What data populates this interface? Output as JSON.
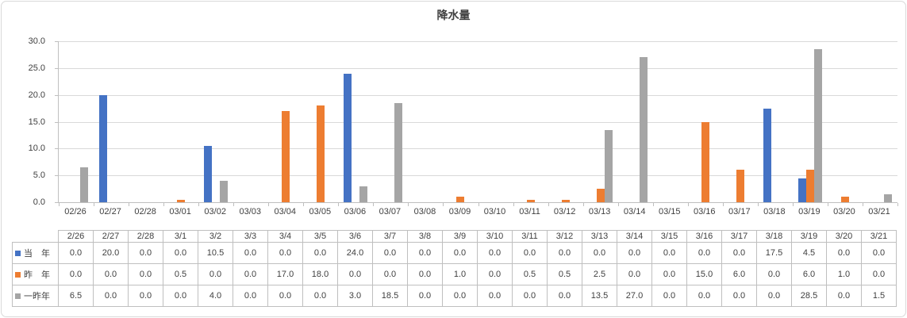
{
  "title": "降水量",
  "colors": {
    "series_blue": "#4472C4",
    "series_orange": "#ED7D31",
    "series_gray": "#A5A5A5",
    "gridline": "#D9D9D9",
    "axis": "#BFBFBF",
    "text": "#404040",
    "chart_border": "#D9D9D9",
    "table_border": "#BFBFBF"
  },
  "chart_data": {
    "type": "bar",
    "title": "降水量",
    "categories": [
      "02/26",
      "02/27",
      "02/28",
      "03/01",
      "03/02",
      "03/03",
      "03/04",
      "03/05",
      "03/06",
      "03/07",
      "03/08",
      "03/09",
      "03/10",
      "03/11",
      "03/12",
      "03/13",
      "03/14",
      "03/15",
      "03/16",
      "03/17",
      "03/18",
      "03/19",
      "03/20",
      "03/21"
    ],
    "series": [
      {
        "id": "current-year",
        "name": "当年",
        "legend_label": "当　年",
        "color": "#4472C4",
        "values": [
          0.0,
          20.0,
          0.0,
          0.0,
          10.5,
          0.0,
          0.0,
          0.0,
          24.0,
          0.0,
          0.0,
          0.0,
          0.0,
          0.0,
          0.0,
          0.0,
          0.0,
          0.0,
          0.0,
          0.0,
          17.5,
          4.5,
          0.0,
          0.0
        ]
      },
      {
        "id": "last-year",
        "name": "昨年",
        "legend_label": "昨　年",
        "color": "#ED7D31",
        "values": [
          0.0,
          0.0,
          0.0,
          0.5,
          0.0,
          0.0,
          17.0,
          18.0,
          0.0,
          0.0,
          0.0,
          1.0,
          0.0,
          0.5,
          0.5,
          2.5,
          0.0,
          0.0,
          15.0,
          6.0,
          0.0,
          6.0,
          1.0,
          0.0
        ]
      },
      {
        "id": "two-years-ago",
        "name": "一昨年",
        "legend_label": "一昨年",
        "color": "#A5A5A5",
        "values": [
          6.5,
          0.0,
          0.0,
          0.0,
          4.0,
          0.0,
          0.0,
          0.0,
          3.0,
          18.5,
          0.0,
          0.0,
          0.0,
          0.0,
          0.0,
          13.5,
          27.0,
          0.0,
          0.0,
          0.0,
          0.0,
          28.5,
          0.0,
          1.5
        ]
      }
    ],
    "ylim": [
      0,
      30
    ],
    "ytick_labels_top_to_bottom": [
      "30.0",
      "25.0",
      "20.0",
      "15.0",
      "10.0",
      "5.0",
      "0.0"
    ],
    "grid": true,
    "value_format": "one-decimal",
    "legend_position": "data-table-left"
  },
  "data_table": {
    "column_headers": [
      "2/26",
      "2/27",
      "2/28",
      "3/1",
      "3/2",
      "3/3",
      "3/4",
      "3/5",
      "3/6",
      "3/7",
      "3/8",
      "3/9",
      "3/10",
      "3/11",
      "3/12",
      "3/13",
      "3/14",
      "3/15",
      "3/16",
      "3/17",
      "3/18",
      "3/19",
      "3/20",
      "3/21"
    ]
  }
}
